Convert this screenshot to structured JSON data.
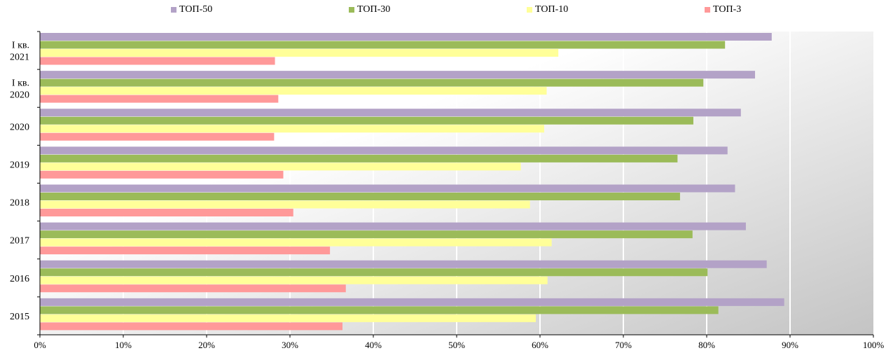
{
  "chart_data": {
    "type": "bar",
    "orientation": "horizontal",
    "categories": [
      "І кв. 2021",
      "І кв. 2020",
      "2020",
      "2019",
      "2018",
      "2017",
      "2016",
      "2015"
    ],
    "category_lines": [
      [
        "І кв.",
        "2021"
      ],
      [
        "І кв.",
        "2020"
      ],
      [
        "2020"
      ],
      [
        "2019"
      ],
      [
        "2018"
      ],
      [
        "2017"
      ],
      [
        "2016"
      ],
      [
        "2015"
      ]
    ],
    "series": [
      {
        "name": "ТОП-50",
        "color": "#b3a2c7",
        "values": [
          87.8,
          85.8,
          84.1,
          82.5,
          83.4,
          84.7,
          87.2,
          89.3
        ]
      },
      {
        "name": "ТОП-30",
        "color": "#9bbb59",
        "values": [
          82.2,
          79.6,
          78.4,
          76.5,
          76.8,
          78.3,
          80.1,
          81.4
        ]
      },
      {
        "name": "ТОП-10",
        "color": "#ffff99",
        "values": [
          62.2,
          60.8,
          60.5,
          57.7,
          58.8,
          61.4,
          60.9,
          59.5
        ]
      },
      {
        "name": "ТОП-3",
        "color": "#ff9999",
        "values": [
          28.2,
          28.6,
          28.1,
          29.2,
          30.4,
          34.8,
          36.7,
          36.3
        ]
      }
    ],
    "xlim": [
      0,
      100
    ],
    "x_ticks": [
      "0%",
      "10%",
      "20%",
      "30%",
      "40%",
      "50%",
      "60%",
      "70%",
      "80%",
      "90%",
      "100%"
    ],
    "legend_position": "top",
    "grid": true,
    "background_gradient": [
      "#ffffff",
      "#c8c8c8"
    ]
  }
}
